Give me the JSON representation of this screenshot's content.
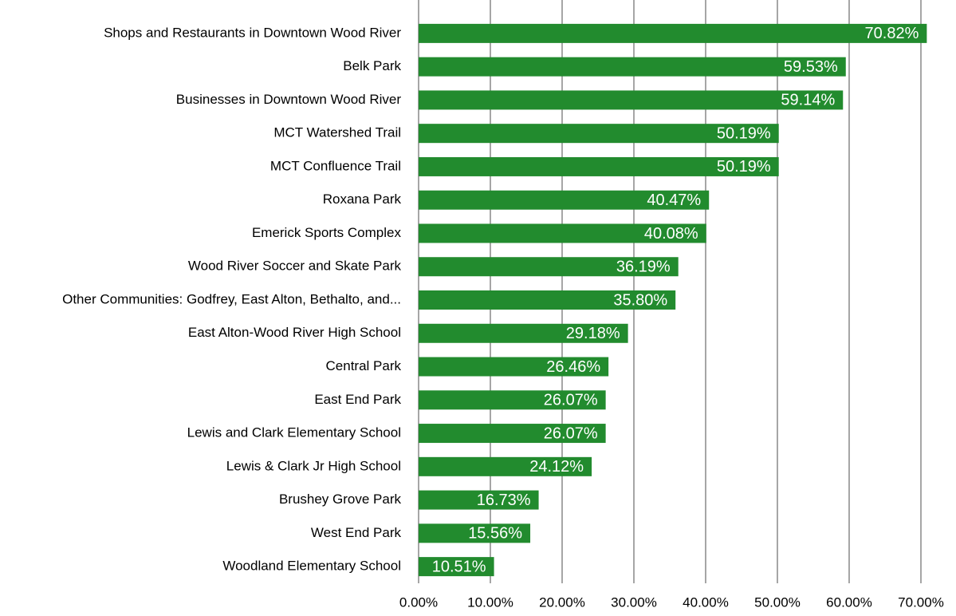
{
  "chart_data": {
    "type": "bar",
    "orientation": "horizontal",
    "categories": [
      "Shops and Restaurants in Downtown Wood River",
      "Belk Park",
      "Businesses in Downtown Wood River",
      "MCT Watershed Trail",
      "MCT Confluence Trail",
      "Roxana Park",
      "Emerick Sports Complex",
      "Wood River Soccer and Skate Park",
      "Other Communities: Godfrey, East Alton, Bethalto, and...",
      "East Alton-Wood River High School",
      "Central Park",
      "East End Park",
      "Lewis and Clark Elementary School",
      "Lewis & Clark Jr High School",
      "Brushey Grove Park",
      "West End Park",
      "Woodland Elementary School"
    ],
    "values": [
      70.82,
      59.53,
      59.14,
      50.19,
      50.19,
      40.47,
      40.08,
      36.19,
      35.8,
      29.18,
      26.46,
      26.07,
      26.07,
      24.12,
      16.73,
      15.56,
      10.51
    ],
    "value_labels": [
      "70.82%",
      "59.53%",
      "59.14%",
      "50.19%",
      "50.19%",
      "40.47%",
      "40.08%",
      "36.19%",
      "35.80%",
      "29.18%",
      "26.46%",
      "26.07%",
      "26.07%",
      "24.12%",
      "16.73%",
      "15.56%",
      "10.51%"
    ],
    "color": "#228b2e",
    "xlim": [
      0,
      70
    ],
    "xticks": [
      {
        "value": 0,
        "label": "0.00%"
      },
      {
        "value": 10,
        "label": "10.00%"
      },
      {
        "value": 20,
        "label": "20.00%"
      },
      {
        "value": 30,
        "label": "30.00%"
      },
      {
        "value": 40,
        "label": "40.00%"
      },
      {
        "value": 50,
        "label": "50.00%"
      },
      {
        "value": 60,
        "label": "60.00%"
      },
      {
        "value": 70,
        "label": "70.00%"
      }
    ],
    "grid": true
  }
}
